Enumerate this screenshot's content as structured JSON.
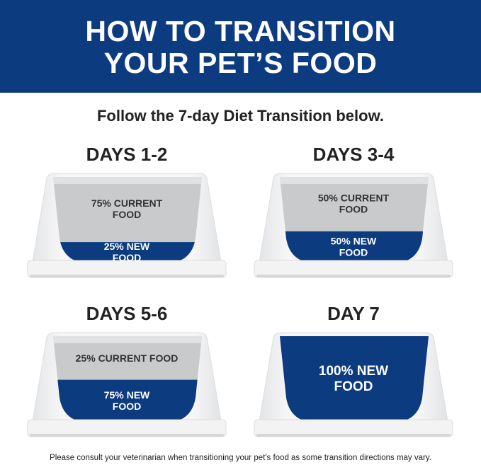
{
  "header": {
    "title_line1": "HOW TO TRANSITION",
    "title_line2": "YOUR PET’S FOOD"
  },
  "subtitle": "Follow the 7-day Diet Transition below.",
  "colors": {
    "brand_blue": "#0c3b80",
    "current_food_gray": "#c9cacc"
  },
  "steps": [
    {
      "day": "DAYS 1-2",
      "current_percent": 75,
      "new_percent": 25,
      "current_label": [
        "75% CURRENT",
        "FOOD"
      ],
      "new_label": [
        "25% NEW",
        "FOOD"
      ]
    },
    {
      "day": "DAYS 3-4",
      "current_percent": 50,
      "new_percent": 50,
      "current_label": [
        "50% CURRENT",
        "FOOD"
      ],
      "new_label": [
        "50% NEW",
        "FOOD"
      ]
    },
    {
      "day": "DAYS 5-6",
      "current_percent": 25,
      "new_percent": 75,
      "current_label": [
        "25% CURRENT FOOD",
        ""
      ],
      "new_label": [
        "75% NEW",
        "FOOD"
      ]
    },
    {
      "day": "DAY 7",
      "current_percent": 0,
      "new_percent": 100,
      "current_label": [
        "",
        ""
      ],
      "new_label": [
        "100% NEW",
        "FOOD"
      ]
    }
  ],
  "footer": "Please consult your veterinarian when transitioning your pet's food as some transition directions may vary."
}
